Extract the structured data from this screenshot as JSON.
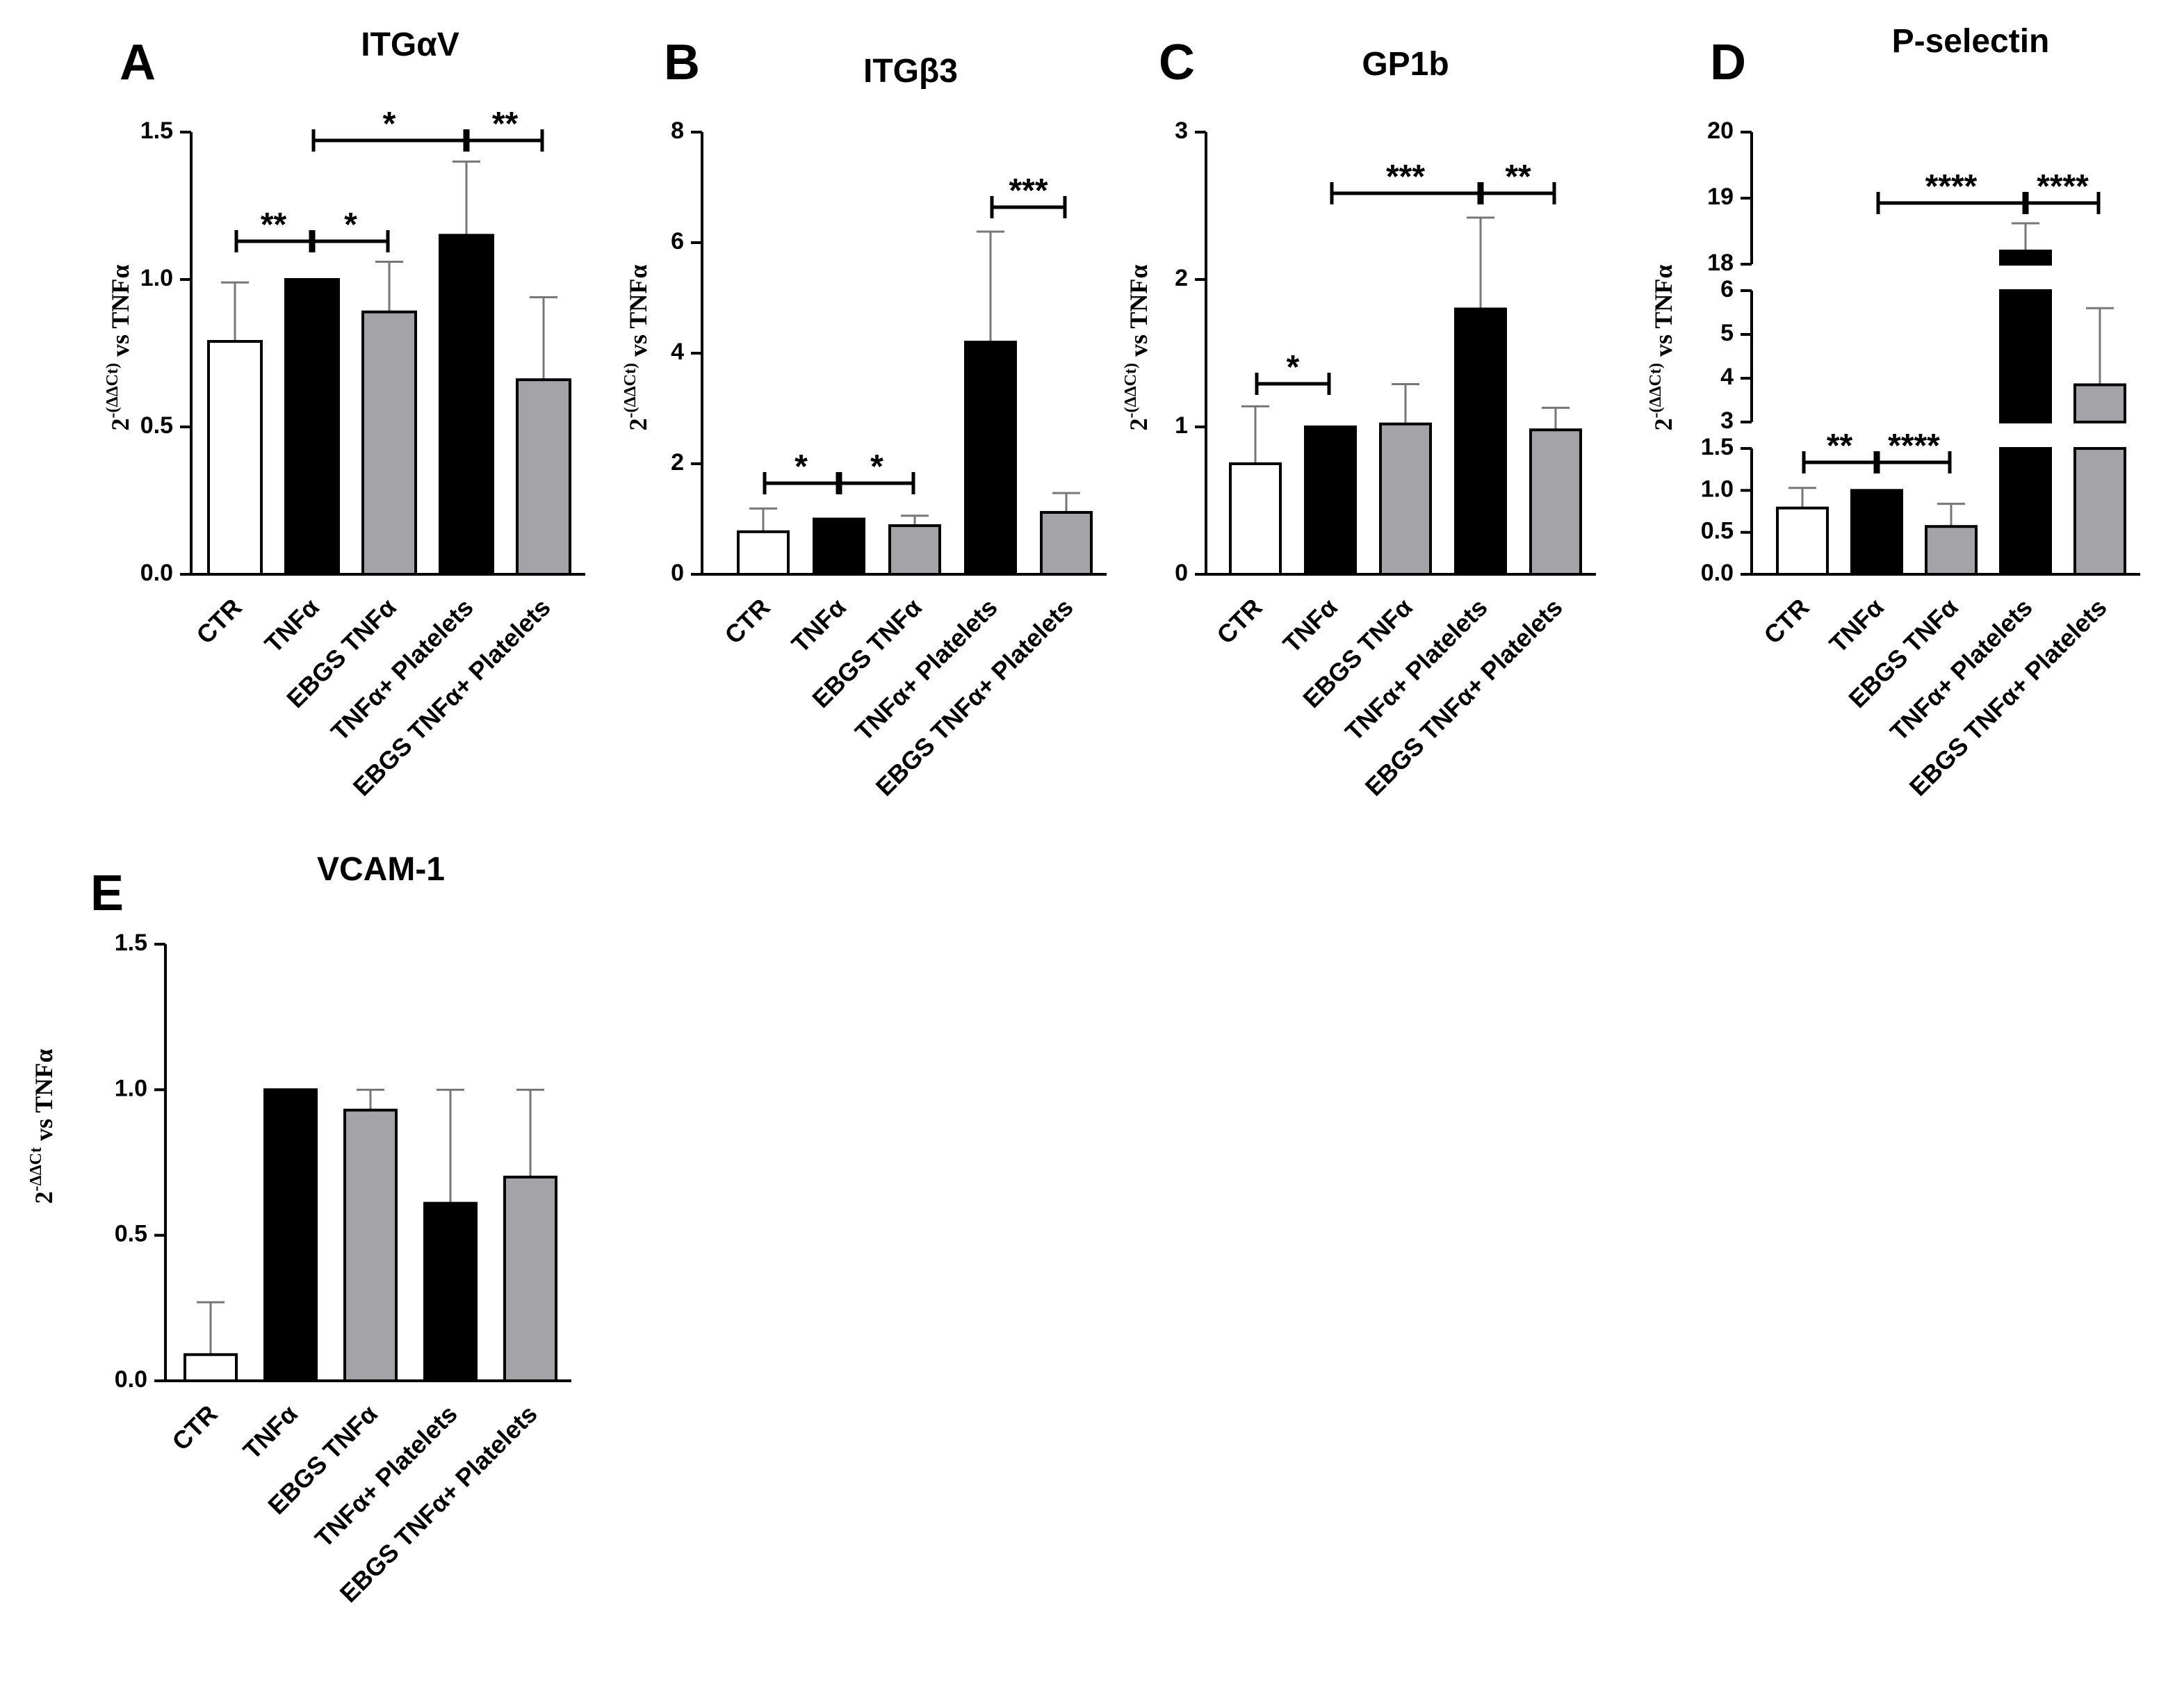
{
  "colors": {
    "white": "#ffffff",
    "black": "#000000",
    "gray": "#a3a3a8",
    "errorbar": "#777777"
  },
  "chart_data": [
    {
      "panel": "A",
      "type": "bar",
      "title": "ITGαV",
      "ylabel": "2-(ΔΔCt) vs TNFα",
      "ylim": [
        0,
        1.5
      ],
      "yticks": [
        "0.0",
        "0.5",
        "1.0",
        "1.5"
      ],
      "categories": [
        "CTR",
        "TNFα",
        "EBGS TNFα",
        "TNFα+ Platelets",
        "EBGS TNFα+ Platelets"
      ],
      "values": [
        0.79,
        1.0,
        0.89,
        1.15,
        0.66
      ],
      "errors": [
        0.2,
        0,
        0.17,
        0.25,
        0.28
      ],
      "fills": [
        "white",
        "black",
        "gray",
        "black",
        "gray"
      ],
      "significance": [
        {
          "from": 0,
          "to": 1,
          "label": "**"
        },
        {
          "from": 1,
          "to": 2,
          "label": "*"
        },
        {
          "from": 1,
          "to": 3,
          "label": "*"
        },
        {
          "from": 3,
          "to": 4,
          "label": "**"
        }
      ]
    },
    {
      "panel": "B",
      "type": "bar",
      "title": "ITGβ3",
      "ylabel": "2-(ΔΔCt) vs TNFα",
      "ylim": [
        0,
        8
      ],
      "yticks": [
        "0",
        "2",
        "4",
        "6",
        "8"
      ],
      "categories": [
        "CTR",
        "TNFα",
        "EBGS TNFα",
        "TNFα+ Platelets",
        "EBGS TNFα+ Platelets"
      ],
      "values": [
        0.77,
        1.0,
        0.88,
        4.2,
        1.12
      ],
      "errors": [
        0.42,
        0,
        0.18,
        2.0,
        0.35
      ],
      "fills": [
        "white",
        "black",
        "gray",
        "black",
        "gray"
      ],
      "significance": [
        {
          "from": 0,
          "to": 1,
          "label": "*"
        },
        {
          "from": 1,
          "to": 2,
          "label": "*"
        },
        {
          "from": 3,
          "to": 4,
          "label": "***"
        }
      ]
    },
    {
      "panel": "C",
      "type": "bar",
      "title": "GP1b",
      "ylabel": "2-(ΔΔCt) vs TNFα",
      "ylim": [
        0,
        3
      ],
      "yticks": [
        "0",
        "1",
        "2",
        "3"
      ],
      "categories": [
        "CTR",
        "TNFα",
        "EBGS TNFα",
        "TNFα+ Platelets",
        "EBGS TNFα+ Platelets"
      ],
      "values": [
        0.75,
        1.0,
        1.02,
        1.8,
        0.98
      ],
      "errors": [
        0.39,
        0,
        0.27,
        0.62,
        0.15
      ],
      "fills": [
        "white",
        "black",
        "gray",
        "black",
        "gray"
      ],
      "significance": [
        {
          "from": 0,
          "to": 1,
          "label": "*"
        },
        {
          "from": 1,
          "to": 3,
          "label": "***"
        },
        {
          "from": 3,
          "to": 4,
          "label": "**"
        }
      ]
    },
    {
      "panel": "D",
      "type": "bar",
      "title": "P-selectin",
      "ylabel": "2-(ΔΔCt) vs TNFα",
      "y_axis_breaks": [
        {
          "range": [
            0,
            1.5
          ],
          "ticks": [
            "0.0",
            "0.5",
            "1.0",
            "1.5"
          ]
        },
        {
          "range": [
            3,
            6
          ],
          "ticks": [
            "3",
            "4",
            "5",
            "6"
          ]
        },
        {
          "range": [
            18,
            20
          ],
          "ticks": [
            "18",
            "19",
            "20"
          ]
        }
      ],
      "categories": [
        "CTR",
        "TNFα",
        "EBGS TNFα",
        "TNFα+ Platelets",
        "EBGS TNFα+ Platelets"
      ],
      "values": [
        0.79,
        1.0,
        0.57,
        18.2,
        3.85
      ],
      "errors": [
        0.24,
        0,
        0.27,
        0.42,
        1.75
      ],
      "fills": [
        "white",
        "black",
        "gray",
        "black",
        "gray"
      ],
      "significance": [
        {
          "from": 0,
          "to": 1,
          "label": "**"
        },
        {
          "from": 1,
          "to": 2,
          "label": "****"
        },
        {
          "from": 1,
          "to": 3,
          "label": "****"
        },
        {
          "from": 3,
          "to": 4,
          "label": "****"
        }
      ]
    },
    {
      "panel": "E",
      "type": "bar",
      "title": "VCAM-1",
      "ylabel": "2-ΔΔCt vs TNFα",
      "ylim": [
        0,
        1.5
      ],
      "yticks": [
        "0.0",
        "0.5",
        "1.0",
        "1.5"
      ],
      "categories": [
        "CTR",
        "TNFα",
        "EBGS TNFα",
        "TNFα+ Platelets",
        "EBGS TNFα+ Platelets"
      ],
      "values": [
        0.09,
        1.0,
        0.93,
        0.61,
        0.7
      ],
      "errors": [
        0.18,
        0,
        0.07,
        0.39,
        0.3
      ],
      "fills": [
        "white",
        "black",
        "gray",
        "black",
        "gray"
      ],
      "significance": []
    }
  ]
}
